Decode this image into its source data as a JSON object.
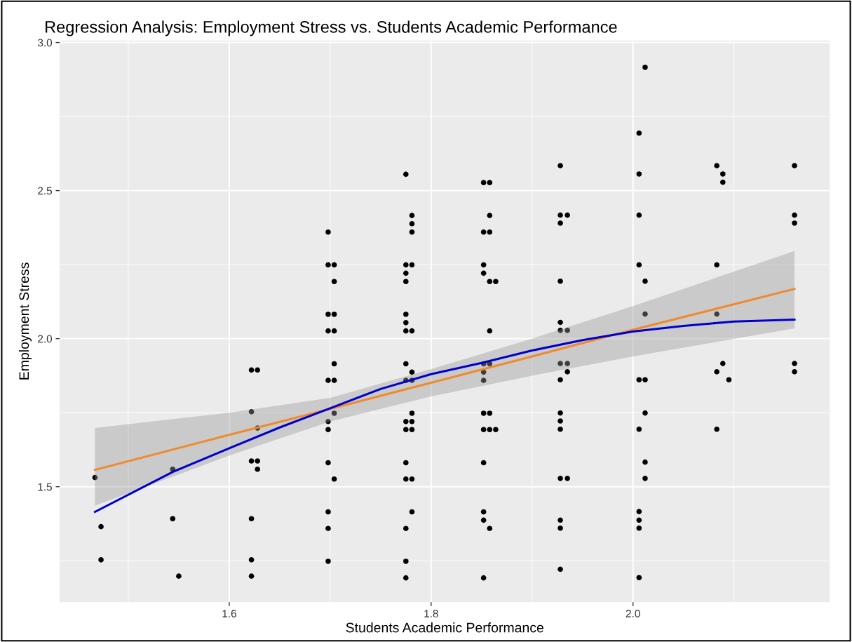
{
  "chart_data": {
    "type": "scatter",
    "title": "Regression Analysis: Employment Stress vs. Students Academic Performance",
    "xlabel": "Students Academic Performance",
    "ylabel": "Employment Stress",
    "xlim": [
      1.432,
      2.195
    ],
    "ylim": [
      1.11,
      3.007
    ],
    "xticks": [
      {
        "value": 1.6,
        "label": "1.6"
      },
      {
        "value": 1.8,
        "label": "1.8"
      },
      {
        "value": 2.0,
        "label": "2.0"
      }
    ],
    "yticks": [
      {
        "value": 1.5,
        "label": "1.5"
      },
      {
        "value": 2.0,
        "label": "2.0"
      },
      {
        "value": 2.5,
        "label": "2.5"
      },
      {
        "value": 3.0,
        "label": "3.0"
      }
    ],
    "grid": true,
    "legend": false,
    "marker": "circle",
    "series": [
      {
        "color": "#000000",
        "x": [
          1.467,
          1.473,
          1.473,
          1.544,
          1.544,
          1.55,
          1.622,
          1.628,
          1.622,
          1.628,
          1.622,
          1.628,
          1.628,
          1.622,
          1.622,
          1.622,
          1.698,
          1.698,
          1.704,
          1.704,
          1.698,
          1.704,
          1.698,
          1.704,
          1.704,
          1.698,
          1.704,
          1.704,
          1.698,
          1.698,
          1.698,
          1.704,
          1.698,
          1.698,
          1.698,
          1.775,
          1.781,
          1.781,
          1.781,
          1.775,
          1.781,
          1.775,
          1.775,
          1.775,
          1.775,
          1.775,
          1.781,
          1.775,
          1.781,
          1.775,
          1.781,
          1.781,
          1.775,
          1.781,
          1.775,
          1.781,
          1.775,
          1.775,
          1.781,
          1.781,
          1.775,
          1.775,
          1.775,
          1.852,
          1.858,
          1.858,
          1.852,
          1.858,
          1.852,
          1.852,
          1.858,
          1.864,
          1.858,
          1.852,
          1.858,
          1.852,
          1.852,
          1.852,
          1.858,
          1.852,
          1.858,
          1.864,
          1.852,
          1.852,
          1.852,
          1.858,
          1.852,
          1.928,
          1.928,
          1.935,
          1.928,
          1.928,
          1.928,
          1.928,
          1.935,
          1.928,
          1.935,
          1.935,
          1.928,
          1.928,
          1.928,
          1.928,
          1.928,
          1.935,
          1.928,
          1.928,
          1.928,
          2.012,
          2.006,
          2.006,
          2.006,
          2.006,
          2.012,
          2.012,
          2.006,
          2.012,
          2.012,
          2.006,
          2.012,
          2.012,
          2.006,
          2.006,
          2.006,
          2.006,
          2.083,
          2.089,
          2.089,
          2.083,
          2.083,
          2.089,
          2.083,
          2.095,
          2.083,
          2.16,
          2.16,
          2.16,
          2.16,
          2.16
        ],
        "values": [
          1.531,
          1.365,
          1.253,
          1.559,
          1.392,
          1.198,
          1.894,
          1.894,
          1.753,
          1.698,
          1.587,
          1.587,
          1.559,
          1.392,
          1.253,
          1.198,
          2.36,
          2.249,
          2.249,
          2.193,
          2.082,
          2.082,
          2.026,
          2.026,
          1.915,
          1.859,
          1.859,
          1.748,
          1.72,
          1.693,
          1.581,
          1.526,
          1.415,
          1.359,
          1.248,
          2.555,
          2.416,
          2.388,
          2.36,
          2.249,
          2.249,
          2.221,
          2.193,
          2.082,
          2.054,
          2.026,
          2.026,
          1.915,
          1.887,
          1.859,
          1.859,
          1.748,
          1.72,
          1.72,
          1.693,
          1.693,
          1.581,
          1.526,
          1.526,
          1.415,
          1.359,
          1.248,
          1.192,
          2.527,
          2.527,
          2.416,
          2.36,
          2.36,
          2.249,
          2.221,
          2.193,
          2.193,
          2.026,
          1.915,
          1.915,
          1.887,
          1.859,
          1.748,
          1.748,
          1.693,
          1.693,
          1.693,
          1.581,
          1.415,
          1.387,
          1.359,
          1.192,
          2.584,
          2.417,
          2.417,
          2.39,
          2.194,
          2.055,
          2.028,
          2.028,
          1.916,
          1.916,
          1.888,
          1.861,
          1.749,
          1.722,
          1.694,
          1.528,
          1.528,
          1.387,
          1.36,
          1.221,
          2.916,
          2.694,
          2.556,
          2.417,
          2.249,
          2.194,
          2.083,
          1.861,
          1.861,
          1.749,
          1.694,
          1.583,
          1.528,
          1.416,
          1.387,
          1.36,
          1.193,
          2.584,
          2.556,
          2.528,
          2.249,
          2.083,
          1.916,
          1.888,
          1.861,
          1.694,
          2.584,
          2.417,
          2.39,
          1.916,
          1.888
        ]
      },
      {
        "type": "line",
        "color": "#f08a2c",
        "marker": "none",
        "line_style": "solid",
        "x": [
          1.467,
          1.6,
          1.7,
          1.8,
          1.9,
          2.0,
          2.16
        ],
        "values": [
          1.557,
          1.675,
          1.763,
          1.851,
          1.94,
          2.03,
          2.168
        ],
        "lower": [
          1.436,
          1.605,
          1.72,
          1.805,
          1.875,
          1.94,
          2.035
        ],
        "upper": [
          1.698,
          1.75,
          1.8,
          1.897,
          2.0,
          2.11,
          2.296
        ]
      },
      {
        "type": "line",
        "color": "#0000cc",
        "marker": "none",
        "line_style": "solid",
        "x": [
          1.467,
          1.544,
          1.6,
          1.65,
          1.7,
          1.75,
          1.8,
          1.85,
          1.9,
          1.95,
          2.0,
          2.05,
          2.1,
          2.16
        ],
        "values": [
          1.415,
          1.55,
          1.63,
          1.7,
          1.765,
          1.83,
          1.88,
          1.918,
          1.96,
          1.995,
          2.024,
          2.043,
          2.058,
          2.064
        ]
      }
    ]
  }
}
